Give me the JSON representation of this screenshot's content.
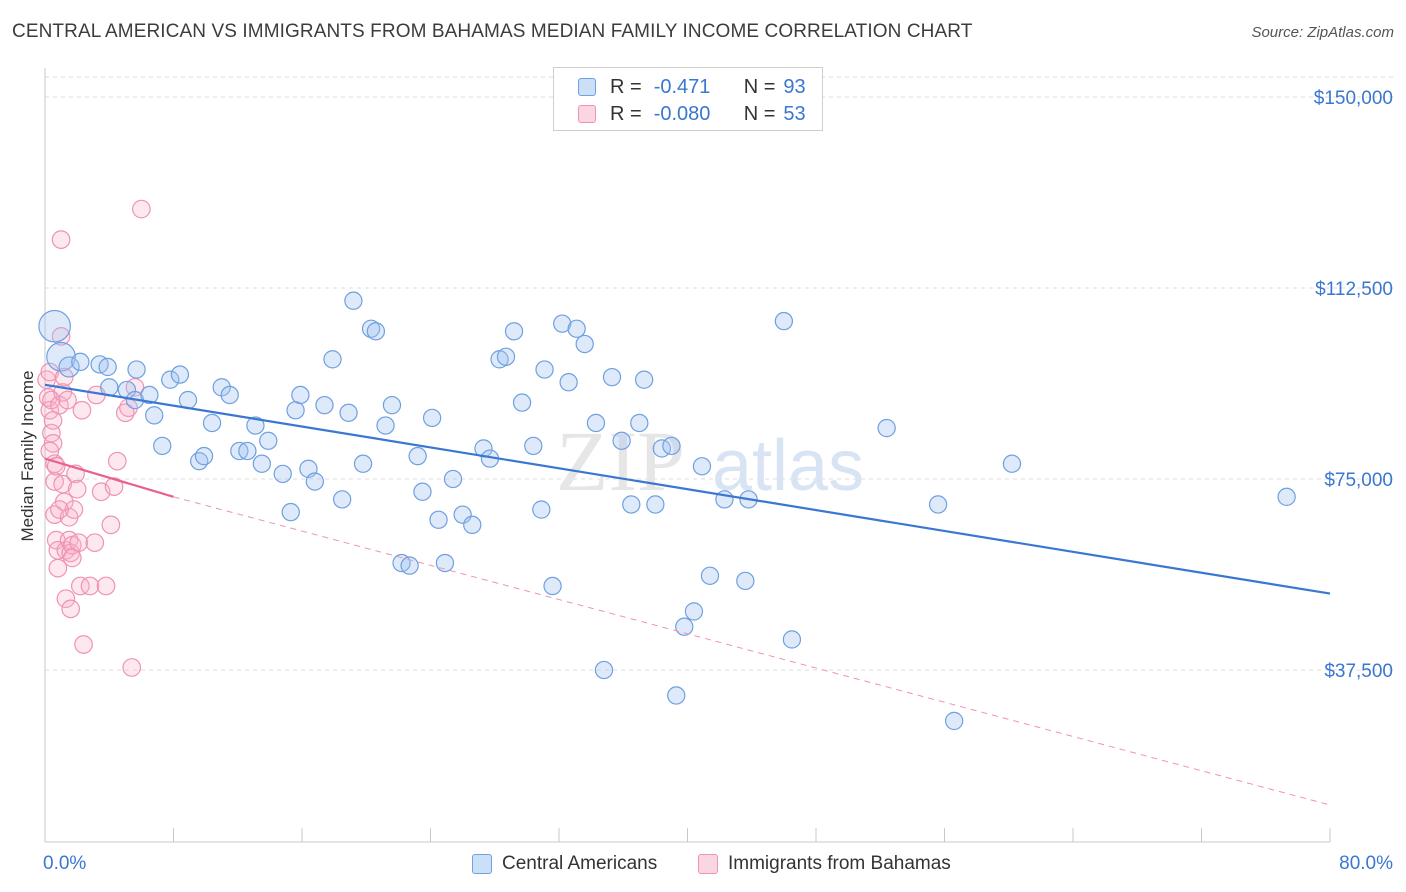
{
  "title": "CENTRAL AMERICAN VS IMMIGRANTS FROM BAHAMAS MEDIAN FAMILY INCOME CORRELATION CHART",
  "source": "Source: ZipAtlas.com",
  "watermark": {
    "zip": "ZIP",
    "atlas": "atlas"
  },
  "colors": {
    "blue": "#3a77d0",
    "blue_fill": "rgba(160,196,240,0.35)",
    "blue_stroke": "#6fa0e0",
    "pink": "#e8608f",
    "pink_fill": "rgba(248,178,202,0.30)",
    "pink_stroke": "#ef93b3",
    "grid": "#dcdcdc",
    "tick_label": "#3a77d0"
  },
  "legend_top": {
    "rows": [
      {
        "r_label": "R =",
        "r_value": "-0.471",
        "n_label": "N =",
        "n_value": "93"
      },
      {
        "r_label": "R =",
        "r_value": "-0.080",
        "n_label": "N =",
        "n_value": "53"
      }
    ]
  },
  "legend_bottom": {
    "series1": "Central Americans",
    "series2": "Immigrants from Bahamas"
  },
  "chart_data": {
    "type": "scatter",
    "title": "CENTRAL AMERICAN VS IMMIGRANTS FROM BAHAMAS MEDIAN FAMILY INCOME CORRELATION CHART",
    "xlabel": "",
    "ylabel": "Median Family Income",
    "xlim": [
      0,
      80
    ],
    "ylim": [
      0,
      155000
    ],
    "x_tick_labels": [
      "0.0%",
      "80.0%"
    ],
    "y_ticks": [
      37500,
      75000,
      112500,
      150000
    ],
    "y_tick_labels": [
      "$37,500",
      "$75,000",
      "$112,500",
      "$150,000"
    ],
    "grid": "horizontal dashed",
    "legend_placement": "top-center and bottom",
    "series": [
      {
        "name": "Central Americans",
        "color": "#3a77d0",
        "R": -0.471,
        "N": 93,
        "trend": {
          "x": [
            0.0,
            80.0
          ],
          "y": [
            93500,
            52500
          ],
          "style": "solid"
        },
        "points": [
          [
            0.6,
            105000,
            22
          ],
          [
            1.0,
            99000,
            20
          ],
          [
            1.5,
            97000,
            14
          ],
          [
            2.2,
            98000,
            12
          ],
          [
            3.4,
            97500,
            12
          ],
          [
            4.0,
            93000,
            12
          ],
          [
            5.7,
            96500,
            12
          ],
          [
            3.9,
            97000,
            12
          ],
          [
            5.1,
            92500,
            12
          ],
          [
            5.6,
            90500,
            12
          ],
          [
            6.5,
            91500,
            12
          ],
          [
            6.8,
            87500,
            12
          ],
          [
            7.3,
            81500,
            12
          ],
          [
            7.8,
            94500,
            12
          ],
          [
            8.4,
            95500,
            12
          ],
          [
            8.9,
            90500,
            12
          ],
          [
            9.6,
            78500,
            12
          ],
          [
            9.9,
            79500,
            12
          ],
          [
            10.4,
            86000,
            12
          ],
          [
            11.0,
            93000,
            12
          ],
          [
            11.5,
            91500,
            12
          ],
          [
            12.1,
            80500,
            12
          ],
          [
            12.6,
            80500,
            12
          ],
          [
            13.1,
            85500,
            12
          ],
          [
            13.5,
            78000,
            12
          ],
          [
            13.9,
            82500,
            12
          ],
          [
            14.8,
            76000,
            12
          ],
          [
            15.3,
            68500,
            12
          ],
          [
            15.6,
            88500,
            12
          ],
          [
            15.9,
            91500,
            12
          ],
          [
            16.4,
            77000,
            12
          ],
          [
            16.8,
            74500,
            12
          ],
          [
            17.4,
            89500,
            12
          ],
          [
            17.9,
            98500,
            12
          ],
          [
            18.5,
            71000,
            12
          ],
          [
            18.9,
            88000,
            12
          ],
          [
            19.2,
            110000,
            12
          ],
          [
            19.8,
            78000,
            12
          ],
          [
            20.3,
            104500,
            12
          ],
          [
            20.6,
            104000,
            12
          ],
          [
            21.2,
            85500,
            12
          ],
          [
            21.6,
            89500,
            12
          ],
          [
            22.2,
            58500,
            12
          ],
          [
            22.7,
            58000,
            12
          ],
          [
            23.2,
            79500,
            12
          ],
          [
            23.5,
            72500,
            12
          ],
          [
            24.1,
            87000,
            12
          ],
          [
            24.5,
            67000,
            12
          ],
          [
            24.9,
            58500,
            12
          ],
          [
            25.4,
            75000,
            12
          ],
          [
            26.0,
            68000,
            12
          ],
          [
            26.6,
            66000,
            12
          ],
          [
            27.3,
            81000,
            12
          ],
          [
            27.7,
            79000,
            12
          ],
          [
            28.3,
            98500,
            12
          ],
          [
            28.7,
            99000,
            12
          ],
          [
            29.2,
            104000,
            12
          ],
          [
            29.7,
            90000,
            12
          ],
          [
            30.4,
            81500,
            12
          ],
          [
            30.9,
            69000,
            12
          ],
          [
            31.1,
            96500,
            12
          ],
          [
            31.6,
            54000,
            12
          ],
          [
            32.2,
            105500,
            12
          ],
          [
            32.6,
            94000,
            12
          ],
          [
            33.1,
            104500,
            12
          ],
          [
            33.6,
            101500,
            12
          ],
          [
            34.3,
            86000,
            12
          ],
          [
            34.8,
            37500,
            12
          ],
          [
            35.3,
            95000,
            12
          ],
          [
            35.9,
            82500,
            12
          ],
          [
            36.5,
            70000,
            12
          ],
          [
            37.0,
            86000,
            12
          ],
          [
            37.3,
            94500,
            12
          ],
          [
            38.0,
            70000,
            12
          ],
          [
            38.4,
            81000,
            12
          ],
          [
            39.0,
            81500,
            12
          ],
          [
            39.3,
            32500,
            12
          ],
          [
            39.8,
            46000,
            12
          ],
          [
            40.4,
            49000,
            12
          ],
          [
            40.9,
            77500,
            12
          ],
          [
            41.4,
            56000,
            12
          ],
          [
            42.3,
            71000,
            12
          ],
          [
            43.6,
            55000,
            12
          ],
          [
            43.8,
            71000,
            12
          ],
          [
            46.0,
            106000,
            12
          ],
          [
            46.5,
            43500,
            12
          ],
          [
            52.4,
            85000,
            12
          ],
          [
            55.6,
            70000,
            12
          ],
          [
            56.6,
            27500,
            12
          ],
          [
            60.2,
            78000,
            12
          ],
          [
            77.3,
            71500,
            12
          ]
        ]
      },
      {
        "name": "Immigrants from Bahamas",
        "color": "#e8608f",
        "R": -0.08,
        "N": 53,
        "trend_solid": {
          "x": [
            0.0,
            8.0
          ],
          "y": [
            79000,
            71500
          ]
        },
        "trend_dashed": {
          "x": [
            8.0,
            80.0
          ],
          "y": [
            71500,
            11000
          ]
        },
        "points": [
          [
            0.1,
            94500,
            14
          ],
          [
            0.2,
            91000,
            14
          ],
          [
            0.3,
            96000,
            14
          ],
          [
            0.3,
            88500,
            14
          ],
          [
            0.4,
            90500,
            14
          ],
          [
            0.4,
            84000,
            14
          ],
          [
            0.5,
            86500,
            14
          ],
          [
            0.5,
            82000,
            14
          ],
          [
            0.6,
            78000,
            14
          ],
          [
            0.6,
            74500,
            14
          ],
          [
            0.6,
            68000,
            14
          ],
          [
            0.7,
            77500,
            14
          ],
          [
            0.7,
            63000,
            14
          ],
          [
            0.8,
            57500,
            14
          ],
          [
            0.8,
            61000,
            14
          ],
          [
            0.9,
            89500,
            14
          ],
          [
            1.0,
            103000,
            14
          ],
          [
            1.0,
            122000,
            14
          ],
          [
            1.1,
            92000,
            14
          ],
          [
            1.1,
            74000,
            14
          ],
          [
            1.2,
            95000,
            14
          ],
          [
            1.2,
            70500,
            14
          ],
          [
            1.3,
            51500,
            14
          ],
          [
            1.3,
            61000,
            14
          ],
          [
            1.4,
            90500,
            14
          ],
          [
            1.5,
            67500,
            14
          ],
          [
            1.5,
            63000,
            14
          ],
          [
            1.6,
            60500,
            14
          ],
          [
            1.6,
            49500,
            14
          ],
          [
            1.7,
            62000,
            14
          ],
          [
            1.8,
            69000,
            14
          ],
          [
            1.9,
            76000,
            14
          ],
          [
            2.0,
            73000,
            14
          ],
          [
            2.1,
            62500,
            14
          ],
          [
            2.2,
            54000,
            14
          ],
          [
            2.3,
            88500,
            14
          ],
          [
            2.4,
            42500,
            14
          ],
          [
            2.8,
            54000,
            14
          ],
          [
            3.1,
            62500,
            14
          ],
          [
            3.2,
            91500,
            14
          ],
          [
            3.5,
            72500,
            14
          ],
          [
            3.8,
            54000,
            14
          ],
          [
            4.1,
            66000,
            14
          ],
          [
            4.3,
            73500,
            14
          ],
          [
            4.5,
            78500,
            14
          ],
          [
            5.0,
            88000,
            14
          ],
          [
            5.2,
            89000,
            14
          ],
          [
            5.4,
            38000,
            14
          ],
          [
            5.6,
            93000,
            14
          ],
          [
            6.0,
            128000,
            14
          ],
          [
            0.9,
            69000,
            14
          ],
          [
            1.7,
            59500,
            14
          ],
          [
            0.3,
            80500,
            14
          ]
        ]
      }
    ]
  }
}
